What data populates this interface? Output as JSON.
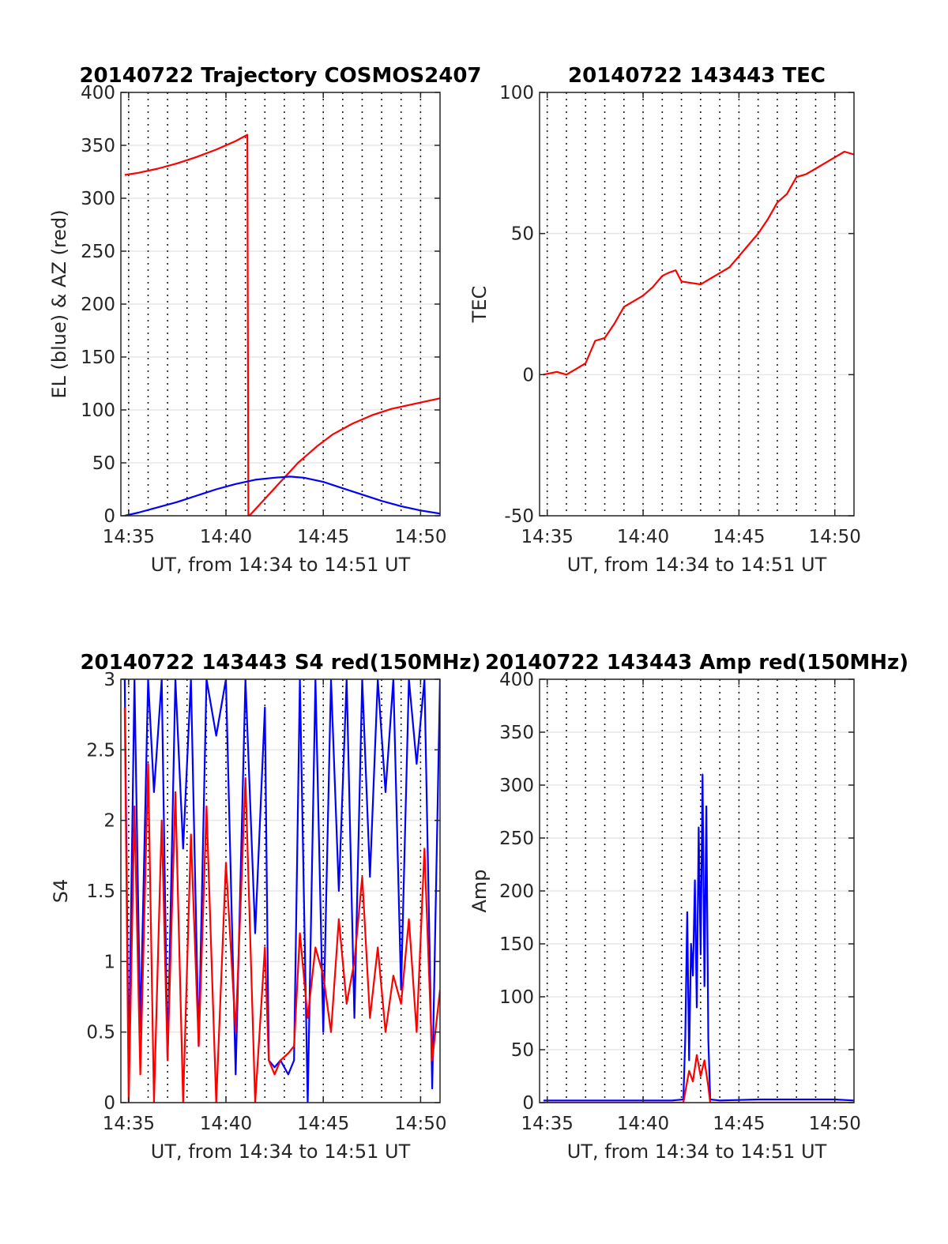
{
  "figure": {
    "background": "#ffffff",
    "grid_solid_color": "#e6e6e6",
    "grid_dotted_color": "#1a1a1a"
  },
  "chart_data": [
    {
      "id": "trajectory",
      "type": "line",
      "title": "20140722 Trajectory COSMOS2407",
      "xlabel": "UT, from 14:34 to 14:51 UT",
      "ylabel": "EL (blue) & AZ (red)",
      "xlim": [
        34.6,
        51
      ],
      "ylim": [
        0,
        400
      ],
      "xticks": [
        35,
        40,
        45,
        50
      ],
      "xtick_labels": [
        "14:35",
        "14:40",
        "14:45",
        "14:50"
      ],
      "yticks": [
        0,
        50,
        100,
        150,
        200,
        250,
        300,
        350,
        400
      ],
      "ytick_labels": [
        "0",
        "50",
        "100",
        "150",
        "200",
        "250",
        "300",
        "350",
        "400"
      ],
      "x_unit": "minutes after 14:00 UT",
      "grid": true,
      "series": [
        {
          "color": "#ff0000",
          "x": [
            34.8,
            35.5,
            36.5,
            37.5,
            38.5,
            39.5,
            40.5,
            41.1,
            41.15,
            41.2,
            41.7,
            42.2,
            42.7,
            43.2,
            43.7,
            44.2,
            44.7,
            45.5,
            46.5,
            47.5,
            48.5,
            49.5,
            50.5,
            51
          ],
          "y": [
            322,
            324,
            328,
            333,
            339,
            346,
            354,
            360,
            0,
            0,
            10,
            20,
            30,
            40,
            50,
            58,
            66,
            77,
            87,
            95,
            101,
            105,
            109,
            111
          ]
        },
        {
          "color": "#0000ff",
          "x": [
            34.8,
            35.5,
            36.5,
            37.5,
            38.5,
            39.5,
            40.5,
            41.5,
            42.5,
            43.3,
            44,
            45,
            46,
            47,
            48,
            49,
            50,
            51
          ],
          "y": [
            0,
            3,
            8,
            13,
            19,
            25,
            30,
            34,
            36,
            37,
            36,
            32,
            26,
            20,
            14,
            9,
            5,
            2
          ]
        }
      ]
    },
    {
      "id": "tec",
      "type": "line",
      "title": "20140722 143443 TEC",
      "xlabel": "UT, from 14:34 to 14:51 UT",
      "ylabel": "TEC",
      "xlim": [
        34.6,
        51
      ],
      "ylim": [
        -50,
        100
      ],
      "xticks": [
        35,
        40,
        45,
        50
      ],
      "xtick_labels": [
        "14:35",
        "14:40",
        "14:45",
        "14:50"
      ],
      "yticks": [
        -50,
        0,
        50,
        100
      ],
      "ytick_labels": [
        "-50",
        "0",
        "50",
        "100"
      ],
      "x_unit": "minutes after 14:00 UT",
      "grid": true,
      "series": [
        {
          "color": "#ff0000",
          "x": [
            34.8,
            35.5,
            36,
            36.5,
            37,
            37.5,
            38,
            38.5,
            39,
            39.5,
            40,
            40.5,
            41,
            41.3,
            41.7,
            42,
            42.5,
            43,
            43.5,
            44,
            44.5,
            45,
            45.5,
            46,
            46.5,
            47,
            47.5,
            48,
            48.5,
            49,
            49.5,
            50,
            50.5,
            51
          ],
          "y": [
            0,
            1,
            0,
            2,
            4,
            12,
            13,
            18,
            24,
            26,
            28,
            31,
            35,
            36,
            37,
            33,
            32.5,
            32,
            34,
            36,
            38,
            42,
            46,
            50,
            55,
            61,
            64,
            70,
            71,
            73,
            75,
            77,
            79,
            78
          ]
        }
      ]
    },
    {
      "id": "s4",
      "type": "line",
      "title": "20140722 143443 S4 red(150MHz)",
      "xlabel": "UT, from 14:34 to 14:51 UT",
      "ylabel": "S4",
      "xlim": [
        34.6,
        51
      ],
      "ylim": [
        0,
        3
      ],
      "xticks": [
        35,
        40,
        45,
        50
      ],
      "xtick_labels": [
        "14:35",
        "14:40",
        "14:45",
        "14:50"
      ],
      "yticks": [
        0,
        0.5,
        1,
        1.5,
        2,
        2.5,
        3
      ],
      "ytick_labels": [
        "0",
        "0.5",
        "1",
        "1.5",
        "2",
        "2.5",
        "3"
      ],
      "x_unit": "minutes after 14:00 UT",
      "grid": true,
      "series": [
        {
          "color": "#0000ff",
          "x": [
            34.8,
            35,
            35.3,
            35.6,
            36,
            36.3,
            36.7,
            37,
            37.4,
            37.8,
            38.2,
            38.6,
            39,
            39.5,
            40,
            40.5,
            41,
            41.5,
            42,
            42.2,
            42.5,
            42.8,
            43.2,
            43.5,
            43.8,
            44.2,
            44.6,
            45,
            45.4,
            45.8,
            46.2,
            46.6,
            47,
            47.4,
            47.8,
            48.2,
            48.6,
            49,
            49.4,
            49.8,
            50.2,
            50.6,
            51
          ],
          "y": [
            3,
            0.2,
            3,
            0.5,
            3,
            2.2,
            3,
            0.3,
            3,
            1.8,
            3,
            0.4,
            3,
            2.6,
            3,
            0.2,
            3,
            1.2,
            2.8,
            0.3,
            0.25,
            0.3,
            0.2,
            0.3,
            3,
            0,
            3,
            0.5,
            3,
            1.5,
            3,
            0.6,
            3,
            1.6,
            3,
            2.2,
            3,
            0.8,
            3,
            2.4,
            3,
            0.1,
            3
          ]
        },
        {
          "color": "#ff0000",
          "x": [
            34.8,
            35,
            35.3,
            35.6,
            36,
            36.3,
            36.7,
            37,
            37.4,
            37.8,
            38.2,
            38.6,
            39,
            39.5,
            40,
            40.5,
            41,
            41.5,
            42,
            42.2,
            42.5,
            42.8,
            43.2,
            43.5,
            43.8,
            44.2,
            44.6,
            45,
            45.4,
            45.8,
            46.2,
            46.6,
            47,
            47.4,
            47.8,
            48.2,
            48.6,
            49,
            49.4,
            49.8,
            50.2,
            50.6,
            51
          ],
          "y": [
            2.8,
            0,
            2.1,
            0.2,
            2.4,
            0,
            2.0,
            0.3,
            2.2,
            0,
            1.9,
            0.4,
            2.1,
            0,
            1.7,
            0.5,
            2.3,
            0,
            1.1,
            0.3,
            0.2,
            0.3,
            0.35,
            0.4,
            1.2,
            0.6,
            1.1,
            0.9,
            0.5,
            1.3,
            0.7,
            1.0,
            1.6,
            0.6,
            1.1,
            0.5,
            0.9,
            0.7,
            1.3,
            0.5,
            1.8,
            0.3,
            0.8
          ]
        }
      ]
    },
    {
      "id": "amp",
      "type": "line",
      "title": "20140722 143443 Amp red(150MHz)",
      "xlabel": "UT, from 14:34 to 14:51 UT",
      "ylabel": "Amp",
      "xlim": [
        34.6,
        51
      ],
      "ylim": [
        0,
        400
      ],
      "xticks": [
        35,
        40,
        45,
        50
      ],
      "xtick_labels": [
        "14:35",
        "14:40",
        "14:45",
        "14:50"
      ],
      "yticks": [
        0,
        50,
        100,
        150,
        200,
        250,
        300,
        350,
        400
      ],
      "ytick_labels": [
        "0",
        "50",
        "100",
        "150",
        "200",
        "250",
        "300",
        "350",
        "400"
      ],
      "x_unit": "minutes after 14:00 UT",
      "grid": true,
      "series": [
        {
          "color": "#0000ff",
          "x": [
            34.8,
            36,
            38,
            40,
            41.5,
            42.1,
            42.2,
            42.3,
            42.4,
            42.5,
            42.6,
            42.7,
            42.8,
            42.9,
            43.0,
            43.1,
            43.2,
            43.3,
            43.4,
            43.5,
            44,
            46,
            48,
            50,
            51
          ],
          "y": [
            2,
            2,
            2,
            2,
            2,
            3,
            60,
            180,
            40,
            150,
            120,
            210,
            90,
            260,
            140,
            310,
            110,
            280,
            60,
            3,
            2,
            3,
            3,
            3,
            2
          ]
        },
        {
          "color": "#ff0000",
          "x": [
            34.8,
            41.5,
            42.1,
            42.2,
            42.4,
            42.6,
            42.8,
            43.0,
            43.2,
            43.4,
            43.5,
            44,
            51
          ],
          "y": [
            0,
            0,
            0,
            10,
            30,
            20,
            45,
            25,
            40,
            15,
            0,
            0,
            0
          ]
        }
      ]
    }
  ]
}
